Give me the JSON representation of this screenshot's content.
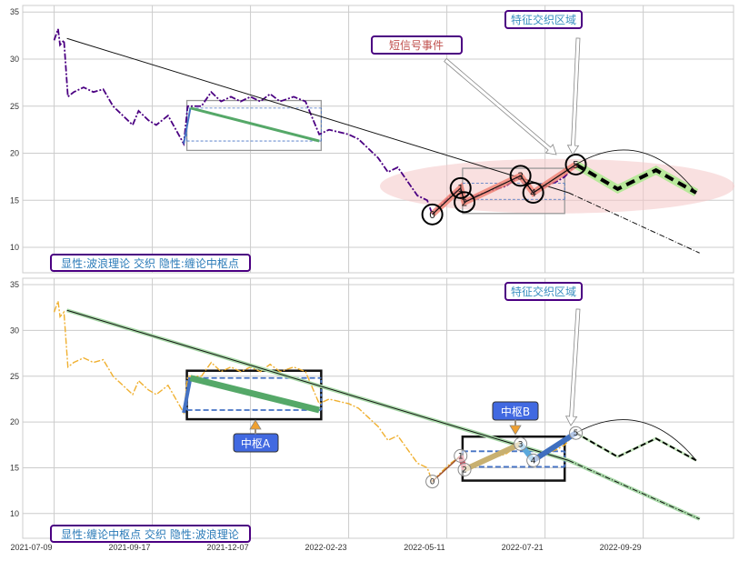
{
  "chart_data": [
    {
      "type": "line",
      "panel": "top",
      "title": "",
      "legend_text": "显性:波浪理论 交织 隐性:缠论中枢点",
      "annotations": {
        "short_signal": "短信号事件",
        "feature_zone": "特征交织区域"
      },
      "xlim": [
        -16,
        346
      ],
      "ylim": [
        7.3,
        35.7
      ],
      "yticks": [
        10,
        15,
        20,
        25,
        30,
        35
      ],
      "grid": true,
      "price_color": "#4b0082",
      "wave_points": [
        {
          "label": "0",
          "x": 192.6,
          "y": 13.5
        },
        {
          "label": "1",
          "x": 207,
          "y": 16.3
        },
        {
          "label": "2",
          "x": 209,
          "y": 14.8
        },
        {
          "label": "3",
          "x": 237.5,
          "y": 17.6
        },
        {
          "label": "4",
          "x": 244,
          "y": 15.8
        },
        {
          "label": "5",
          "x": 265.7,
          "y": 18.8
        }
      ],
      "projection": [
        [
          265.7,
          18.8
        ],
        [
          287,
          16.2
        ],
        [
          306.5,
          18.2
        ],
        [
          327,
          15.8
        ]
      ],
      "trend_line": {
        "start": [
          6.5,
          32.2
        ],
        "break": [
          262,
          15.8
        ],
        "end": [
          328.7,
          9.4
        ]
      },
      "green_segment": [
        [
          69.4,
          24.8
        ],
        [
          135,
          21.3
        ]
      ],
      "boxes": [
        {
          "x0": 67.6,
          "x1": 136,
          "y0": 20.3,
          "y1": 25.6,
          "inner": [
            21.3,
            24.8
          ]
        },
        {
          "x0": 208,
          "x1": 260,
          "y0": 13.6,
          "y1": 18.4,
          "inner": [
            15.1,
            16.8
          ]
        }
      ]
    },
    {
      "type": "line",
      "panel": "bottom",
      "legend_text": "显性:缠论中枢点 交织 隐性:波浪理论",
      "annotations": {
        "pivot_a": "中枢A",
        "pivot_b": "中枢B",
        "feature_zone": "特征交织区域"
      },
      "xlim": [
        -16,
        346
      ],
      "ylim": [
        7.3,
        35.7
      ],
      "yticks": [
        10,
        15,
        20,
        25,
        30,
        35
      ],
      "xticks": [
        0,
        50,
        100,
        150,
        200,
        250,
        300
      ],
      "xtick_labels": [
        "2021-07-09",
        "2021-09-17",
        "2021-12-07",
        "2022-02-23",
        "2022-05-11",
        "2022-07-21",
        "2022-09-29"
      ],
      "grid": true,
      "price_color": "#f0b030",
      "segment_colors": [
        "#a0522d",
        "#d1495b",
        "#c8b070",
        "#5aa9dc",
        "#3f6fbf"
      ]
    }
  ],
  "price_series": [
    [
      0,
      32
    ],
    [
      2,
      33.2
    ],
    [
      3,
      31.5
    ],
    [
      5,
      32
    ],
    [
      7,
      26
    ],
    [
      10,
      26.5
    ],
    [
      15,
      27
    ],
    [
      20,
      26.5
    ],
    [
      25,
      26.8
    ],
    [
      30,
      25
    ],
    [
      35,
      24
    ],
    [
      40,
      23
    ],
    [
      43,
      24.5
    ],
    [
      48,
      23.5
    ],
    [
      52,
      23
    ],
    [
      58,
      24
    ],
    [
      62,
      22.5
    ],
    [
      66,
      21
    ],
    [
      68,
      25
    ],
    [
      75,
      25
    ],
    [
      80,
      26.5
    ],
    [
      85,
      25.5
    ],
    [
      90,
      26
    ],
    [
      95,
      25.5
    ],
    [
      100,
      26
    ],
    [
      105,
      25.5
    ],
    [
      110,
      26.3
    ],
    [
      115,
      25.5
    ],
    [
      122,
      26
    ],
    [
      128,
      25.5
    ],
    [
      135,
      22
    ],
    [
      140,
      22.5
    ],
    [
      150,
      22
    ],
    [
      155,
      21.5
    ],
    [
      160,
      20.5
    ],
    [
      165,
      19.5
    ],
    [
      170,
      18
    ],
    [
      175,
      18.5
    ],
    [
      180,
      17
    ],
    [
      185,
      15.5
    ],
    [
      190,
      15
    ],
    [
      192.6,
      13.5
    ],
    [
      197,
      14.5
    ],
    [
      202,
      15.5
    ],
    [
      207,
      16.3
    ],
    [
      209,
      14.8
    ],
    [
      215,
      15.5
    ],
    [
      222,
      16
    ],
    [
      230,
      16.5
    ],
    [
      237.5,
      17.6
    ],
    [
      244,
      15.8
    ],
    [
      250,
      16.5
    ],
    [
      256,
      17
    ],
    [
      260,
      17.5
    ],
    [
      265.7,
      18.8
    ]
  ]
}
